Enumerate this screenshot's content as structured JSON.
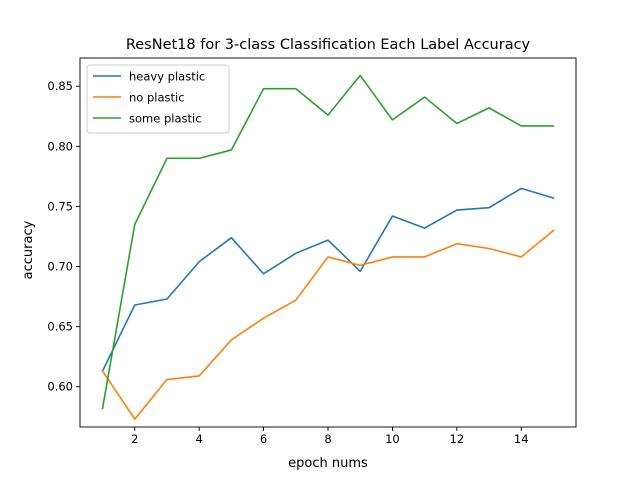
{
  "chart_data": {
    "type": "line",
    "title": "ResNet18 for 3-class Classification Each Label Accuracy",
    "xlabel": "epoch nums",
    "ylabel": "accuracy",
    "x": [
      1,
      2,
      3,
      4,
      5,
      6,
      7,
      8,
      9,
      10,
      11,
      12,
      13,
      14,
      15
    ],
    "xlim": [
      0.3,
      15.7
    ],
    "ylim": [
      0.5665,
      0.8735
    ],
    "xticks": [
      2,
      4,
      6,
      8,
      10,
      12,
      14
    ],
    "xtick_labels": [
      "2",
      "4",
      "6",
      "8",
      "10",
      "12",
      "14"
    ],
    "yticks": [
      0.6,
      0.65,
      0.7,
      0.75,
      0.8,
      0.85
    ],
    "ytick_labels": [
      "0.60",
      "0.65",
      "0.70",
      "0.75",
      "0.80",
      "0.85"
    ],
    "grid": false,
    "legend_position": "upper left",
    "series": [
      {
        "name": "heavy plastic",
        "color": "#1f77b4",
        "values": [
          0.613,
          0.668,
          0.673,
          0.704,
          0.724,
          0.694,
          0.711,
          0.722,
          0.696,
          0.742,
          0.732,
          0.747,
          0.749,
          0.765,
          0.757
        ]
      },
      {
        "name": "no plastic",
        "color": "#ff7f0e",
        "values": [
          0.613,
          0.573,
          0.606,
          0.609,
          0.639,
          0.657,
          0.672,
          0.708,
          0.701,
          0.708,
          0.708,
          0.719,
          0.715,
          0.708,
          0.73
        ]
      },
      {
        "name": "some plastic",
        "color": "#2ca02c",
        "values": [
          0.582,
          0.735,
          0.79,
          0.79,
          0.797,
          0.848,
          0.848,
          0.826,
          0.859,
          0.822,
          0.841,
          0.819,
          0.832,
          0.817,
          0.817
        ]
      }
    ]
  }
}
